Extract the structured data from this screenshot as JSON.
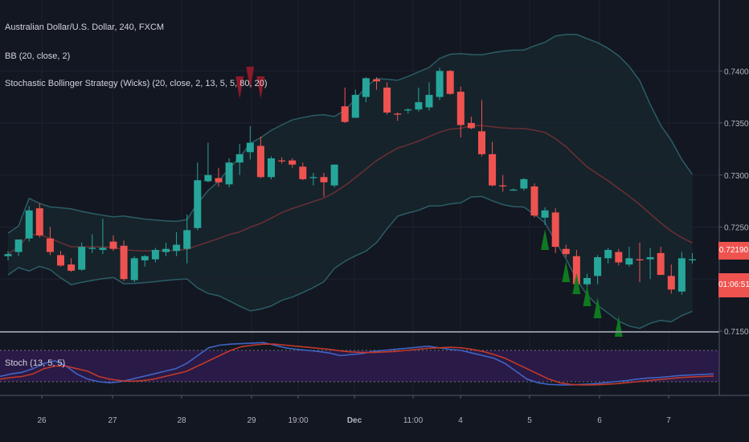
{
  "legend": {
    "symbol": "Australian Dollar/U.S. Dollar, 240, FXCM",
    "bb": "BB (20, close, 2)",
    "strategy": "Stochastic Bollinger Strategy (Wicks) (20, close, 2, 13, 5, 5, 80, 20)",
    "stoch": "Stoch (13, 5, 5)"
  },
  "price_label": {
    "value": "0.72190",
    "countdown": "01:06:51"
  },
  "colors": {
    "background": "#131722",
    "bull": "#26a69a",
    "bear": "#ef5350",
    "bb_band": "#2b5d66",
    "bb_basis": "#6b2f34",
    "bb_fill": "#17262d",
    "signal_down": "#8b1a2a",
    "signal_up": "#0f7a1f",
    "stoch_bg": "#2a1a47",
    "stoch_k": "#3f64c4",
    "stoch_d": "#c0392b"
  },
  "chart_data": [
    {
      "type": "candlestick",
      "title": "Australian Dollar/U.S. Dollar, 240, FXCM",
      "y_axis": {
        "ticks": [
          "0.74000",
          "0.73500",
          "0.73000",
          "0.72500",
          "0.72000",
          "0.71500"
        ],
        "range": [
          0.715,
          0.7445
        ]
      },
      "x_axis": {
        "ticks": [
          "26",
          "27",
          "28",
          "29",
          "19:00",
          "Dec",
          "11:00",
          "4",
          "5",
          "6",
          "7"
        ]
      },
      "candles": [
        [
          0.7222,
          0.7227,
          0.7218,
          0.7224
        ],
        [
          0.7226,
          0.7238,
          0.7222,
          0.7238
        ],
        [
          0.7239,
          0.727,
          0.7236,
          0.7266
        ],
        [
          0.7268,
          0.7273,
          0.724,
          0.7242
        ],
        [
          0.7239,
          0.725,
          0.7223,
          0.7226
        ],
        [
          0.7223,
          0.7227,
          0.7212,
          0.7213
        ],
        [
          0.7214,
          0.722,
          0.7207,
          0.7208
        ],
        [
          0.7209,
          0.7235,
          0.7208,
          0.7231
        ],
        [
          0.7229,
          0.7243,
          0.7225,
          0.723
        ],
        [
          0.7228,
          0.7258,
          0.7224,
          0.723
        ],
        [
          0.7236,
          0.7242,
          0.7227,
          0.7229
        ],
        [
          0.7232,
          0.7237,
          0.7198,
          0.72
        ],
        [
          0.7199,
          0.7222,
          0.7197,
          0.722
        ],
        [
          0.7218,
          0.7223,
          0.7212,
          0.7222
        ],
        [
          0.7219,
          0.723,
          0.7216,
          0.7228
        ],
        [
          0.7226,
          0.7235,
          0.7222,
          0.7229
        ],
        [
          0.7227,
          0.7245,
          0.7222,
          0.7233
        ],
        [
          0.7229,
          0.7262,
          0.7215,
          0.7247
        ],
        [
          0.7249,
          0.7312,
          0.7247,
          0.7295
        ],
        [
          0.7294,
          0.7331,
          0.7293,
          0.73
        ],
        [
          0.7297,
          0.7307,
          0.7289,
          0.7293
        ],
        [
          0.7291,
          0.7316,
          0.7288,
          0.7312
        ],
        [
          0.7312,
          0.733,
          0.73,
          0.732
        ],
        [
          0.7322,
          0.7347,
          0.7315,
          0.7331
        ],
        [
          0.7328,
          0.7337,
          0.7297,
          0.7298
        ],
        [
          0.7298,
          0.7318,
          0.7296,
          0.7316
        ],
        [
          0.7314,
          0.7317,
          0.7311,
          0.7313
        ],
        [
          0.7314,
          0.7316,
          0.7307,
          0.731
        ],
        [
          0.7308,
          0.7312,
          0.7295,
          0.7296
        ],
        [
          0.7297,
          0.7302,
          0.729,
          0.7298
        ],
        [
          0.7298,
          0.7302,
          0.7279,
          0.7293
        ],
        [
          0.729,
          0.7308,
          0.7288,
          0.731
        ],
        [
          0.7366,
          0.7384,
          0.735,
          0.7351
        ],
        [
          0.7355,
          0.7382,
          0.7355,
          0.7377
        ],
        [
          0.7375,
          0.7394,
          0.737,
          0.7393
        ],
        [
          0.7392,
          0.7394,
          0.7382,
          0.739
        ],
        [
          0.7384,
          0.7389,
          0.7358,
          0.736
        ],
        [
          0.7359,
          0.736,
          0.7352,
          0.7358
        ],
        [
          0.7362,
          0.7364,
          0.7359,
          0.7363
        ],
        [
          0.7363,
          0.7384,
          0.7361,
          0.737
        ],
        [
          0.7365,
          0.7389,
          0.7362,
          0.7377
        ],
        [
          0.7375,
          0.7403,
          0.7372,
          0.74
        ],
        [
          0.74,
          0.7401,
          0.7377,
          0.7378
        ],
        [
          0.738,
          0.7385,
          0.7336,
          0.7348
        ],
        [
          0.735,
          0.7356,
          0.7344,
          0.7345
        ],
        [
          0.7342,
          0.7372,
          0.7318,
          0.732
        ],
        [
          0.732,
          0.7332,
          0.7289,
          0.729
        ],
        [
          0.729,
          0.73,
          0.7284,
          0.7289
        ],
        [
          0.7285,
          0.7287,
          0.7285,
          0.7286
        ],
        [
          0.7287,
          0.7297,
          0.7285,
          0.7296
        ],
        [
          0.7289,
          0.7292,
          0.7259,
          0.7261
        ],
        [
          0.7259,
          0.7269,
          0.7252,
          0.7266
        ],
        [
          0.7264,
          0.7268,
          0.7225,
          0.7231
        ],
        [
          0.7229,
          0.7233,
          0.7221,
          0.7224
        ],
        [
          0.7222,
          0.7228,
          0.7192,
          0.7195
        ],
        [
          0.7195,
          0.7205,
          0.719,
          0.7201
        ],
        [
          0.7203,
          0.7223,
          0.7195,
          0.7221
        ],
        [
          0.722,
          0.723,
          0.7215,
          0.7228
        ],
        [
          0.7226,
          0.7229,
          0.7213,
          0.7216
        ],
        [
          0.7214,
          0.7231,
          0.7212,
          0.722
        ],
        [
          0.7219,
          0.7235,
          0.7197,
          0.7218
        ],
        [
          0.7219,
          0.723,
          0.72,
          0.7221
        ],
        [
          0.7225,
          0.7231,
          0.7204,
          0.7204
        ],
        [
          0.7203,
          0.7214,
          0.7186,
          0.719
        ],
        [
          0.7188,
          0.7226,
          0.7185,
          0.722
        ],
        [
          0.7218,
          0.7225,
          0.7215,
          0.7219
        ]
      ],
      "signals_short_at_candles": [
        22,
        23,
        24
      ],
      "signals_long_at_candles": [
        51,
        53,
        54,
        55,
        56,
        58
      ]
    },
    {
      "type": "line",
      "title": "Stoch (13, 5, 5)",
      "range": [
        0,
        100
      ],
      "band": [
        20,
        80
      ],
      "series": [
        {
          "name": "%K",
          "values": [
            30,
            35,
            38,
            45,
            55,
            60,
            50,
            35,
            25,
            20,
            18,
            20,
            25,
            30,
            35,
            40,
            45,
            55,
            70,
            85,
            90,
            92,
            93,
            94,
            95,
            90,
            85,
            82,
            80,
            78,
            75,
            70,
            72,
            74,
            78,
            80,
            82,
            84,
            86,
            88,
            85,
            82,
            80,
            75,
            70,
            65,
            55,
            40,
            25,
            18,
            15,
            14,
            14,
            15,
            16,
            18,
            20,
            22,
            25,
            27,
            28,
            30,
            32,
            33,
            34,
            35
          ]
        },
        {
          "name": "%D",
          "values": [
            25,
            28,
            30,
            35,
            45,
            50,
            50,
            45,
            40,
            30,
            25,
            22,
            21,
            22,
            25,
            30,
            35,
            40,
            50,
            60,
            70,
            80,
            87,
            90,
            92,
            92,
            90,
            88,
            86,
            84,
            82,
            79,
            77,
            76,
            76,
            77,
            78,
            80,
            82,
            84,
            85,
            86,
            85,
            82,
            78,
            72,
            65,
            55,
            45,
            35,
            25,
            18,
            15,
            14,
            14,
            15,
            16,
            18,
            20,
            22,
            24,
            26,
            28,
            29,
            30,
            31
          ]
        }
      ]
    }
  ]
}
